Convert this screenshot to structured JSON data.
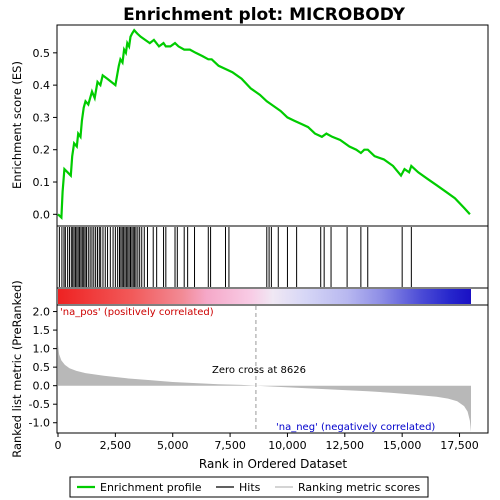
{
  "chart_data": {
    "type": "line",
    "title": "Enrichment plot: MICROBODY",
    "top_panel": {
      "ylabel": "Enrichment score (ES)",
      "ylim": [
        -0.03,
        0.58
      ],
      "yticks": [
        0.0,
        0.1,
        0.2,
        0.3,
        0.4,
        0.5
      ],
      "ytick_labels": [
        "0.0",
        "0.1",
        "0.2",
        "0.3",
        "0.4",
        "0.5"
      ],
      "line_color": "#00cc00",
      "series": [
        {
          "name": "Enrichment profile",
          "x": [
            0,
            150,
            200,
            280,
            420,
            560,
            620,
            700,
            820,
            880,
            980,
            1040,
            1120,
            1200,
            1320,
            1480,
            1600,
            1720,
            1850,
            1950,
            2150,
            2500,
            2650,
            2720,
            2810,
            2880,
            2960,
            3020,
            3100,
            3160,
            3230,
            3320,
            3450,
            3600,
            4000,
            4180,
            4400,
            4600,
            4700,
            4900,
            5100,
            5250,
            5500,
            5750,
            6000,
            6300,
            6550,
            6700,
            7000,
            7300,
            7600,
            8000,
            8400,
            8800,
            9100,
            9300,
            9700,
            10000,
            10300,
            10600,
            10900,
            11200,
            11500,
            11700,
            11950,
            12300,
            12700,
            13000,
            13200,
            13350,
            13500,
            13800,
            14200,
            14600,
            14950,
            15100,
            15300,
            15400,
            15700,
            16100,
            16500,
            16900,
            17300,
            17700,
            17950
          ],
          "y": [
            0.0,
            -0.01,
            0.07,
            0.14,
            0.13,
            0.12,
            0.18,
            0.22,
            0.21,
            0.25,
            0.24,
            0.29,
            0.33,
            0.35,
            0.34,
            0.38,
            0.36,
            0.41,
            0.4,
            0.43,
            0.42,
            0.4,
            0.46,
            0.48,
            0.47,
            0.51,
            0.5,
            0.53,
            0.52,
            0.55,
            0.56,
            0.57,
            0.56,
            0.55,
            0.53,
            0.54,
            0.52,
            0.53,
            0.52,
            0.52,
            0.53,
            0.52,
            0.51,
            0.51,
            0.5,
            0.49,
            0.48,
            0.48,
            0.46,
            0.45,
            0.44,
            0.42,
            0.39,
            0.37,
            0.35,
            0.34,
            0.32,
            0.3,
            0.29,
            0.28,
            0.27,
            0.25,
            0.24,
            0.25,
            0.24,
            0.23,
            0.21,
            0.2,
            0.19,
            0.2,
            0.2,
            0.18,
            0.17,
            0.15,
            0.12,
            0.14,
            0.13,
            0.15,
            0.13,
            0.11,
            0.09,
            0.07,
            0.05,
            0.02,
            0.0
          ]
        }
      ]
    },
    "hits": [
      60,
      170,
      260,
      320,
      420,
      500,
      580,
      640,
      700,
      760,
      820,
      880,
      940,
      1000,
      1060,
      1120,
      1180,
      1240,
      1320,
      1400,
      1480,
      1560,
      1640,
      1720,
      1800,
      1860,
      1960,
      2060,
      2160,
      2280,
      2400,
      2500,
      2600,
      2680,
      2740,
      2800,
      2860,
      2920,
      2980,
      3040,
      3100,
      3160,
      3220,
      3280,
      3340,
      3400,
      3480,
      3560,
      3650,
      3760,
      3900,
      4150,
      4300,
      4600,
      4700,
      5100,
      5200,
      5500,
      5650,
      5950,
      6550,
      6650,
      7300,
      7450,
      9100,
      9200,
      9300,
      9600,
      10000,
      10400,
      11450,
      11600,
      11900,
      12600,
      13200,
      13500,
      15000,
      15400
    ],
    "middle_panel": {
      "note": "na_pos (positively correlated) shown red, na_neg (negatively correlated) shown blue"
    },
    "bottom_panel": {
      "ylabel": "Ranked list metric (PreRanked)",
      "ylim": [
        -1.25,
        2.15
      ],
      "yticks": [
        -1.0,
        -0.5,
        0.0,
        0.5,
        1.0,
        1.5,
        2.0
      ],
      "ytick_labels": [
        "-1.0",
        "-0.5",
        "0.0",
        "0.5",
        "1.0",
        "1.5",
        "2.0"
      ],
      "metric_curve": {
        "x": [
          0,
          50,
          150,
          300,
          500,
          800,
          1200,
          2000,
          3000,
          4000,
          5000,
          6000,
          7000,
          8000,
          8626,
          9500,
          10500,
          11500,
          12500,
          13500,
          14500,
          15500,
          16500,
          17000,
          17400,
          17700,
          17850,
          17950,
          18000
        ],
        "y": [
          1.1,
          0.85,
          0.68,
          0.56,
          0.47,
          0.4,
          0.34,
          0.27,
          0.2,
          0.15,
          0.1,
          0.07,
          0.04,
          0.02,
          0.0,
          -0.03,
          -0.06,
          -0.09,
          -0.12,
          -0.15,
          -0.19,
          -0.24,
          -0.3,
          -0.35,
          -0.42,
          -0.55,
          -0.7,
          -0.95,
          -1.25
        ]
      },
      "pos_label": "'na_pos' (positively correlated)",
      "neg_label": "'na_neg' (negatively correlated)",
      "zero_cross_label": "Zero cross at 8626",
      "zero_cross": 8626
    },
    "xaxis": {
      "xlabel": "Rank in Ordered Dataset",
      "xlim": [
        0,
        18000
      ],
      "xticks": [
        0,
        2500,
        5000,
        7500,
        10000,
        12500,
        15000,
        17500
      ],
      "xtick_labels": [
        "0",
        "2,500",
        "5,000",
        "7,500",
        "10,000",
        "12,500",
        "15,000",
        "17,500"
      ]
    },
    "legend": {
      "position": "bottom",
      "items": [
        {
          "label": "Enrichment profile",
          "color": "#00cc00"
        },
        {
          "label": "Hits",
          "color": "#000000"
        },
        {
          "label": "Ranking metric scores",
          "color": "#bbbbbb"
        }
      ]
    }
  }
}
